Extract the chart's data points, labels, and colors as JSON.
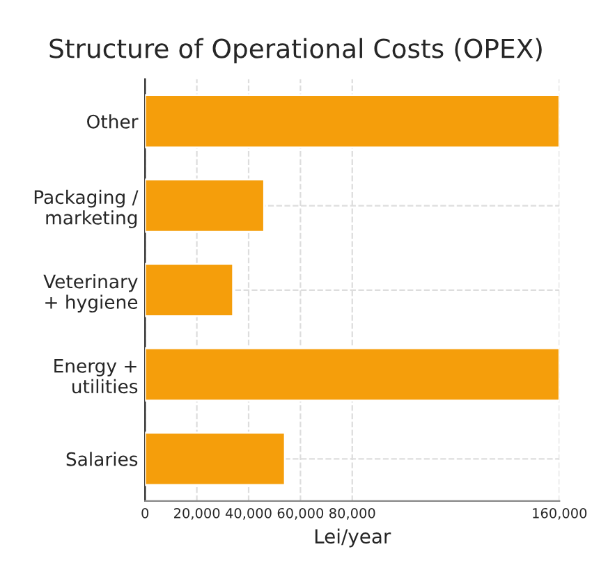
{
  "chart_data": {
    "type": "bar",
    "orientation": "horizontal",
    "title": "Structure of Operational Costs (OPEX)",
    "xlabel": "Lei/year",
    "categories": [
      "Other",
      "Packaging /\nmarketing",
      "Veterinary\n+ hygiene",
      "Energy +\nutilities",
      "Salaries"
    ],
    "values": [
      160000,
      46000,
      34000,
      160000,
      54000
    ],
    "color": "#f59e0b",
    "xlim": [
      0,
      160000
    ],
    "xticks": [
      0,
      {
        "value": 20000,
        "label": "20,000"
      },
      {
        "value": 40000,
        "label": "40,000"
      },
      {
        "value": 60000,
        "label": "60,000"
      },
      {
        "value": 80000,
        "label": "80,000"
      },
      {
        "value": 160000,
        "label": "160,000"
      }
    ],
    "grid": true
  }
}
